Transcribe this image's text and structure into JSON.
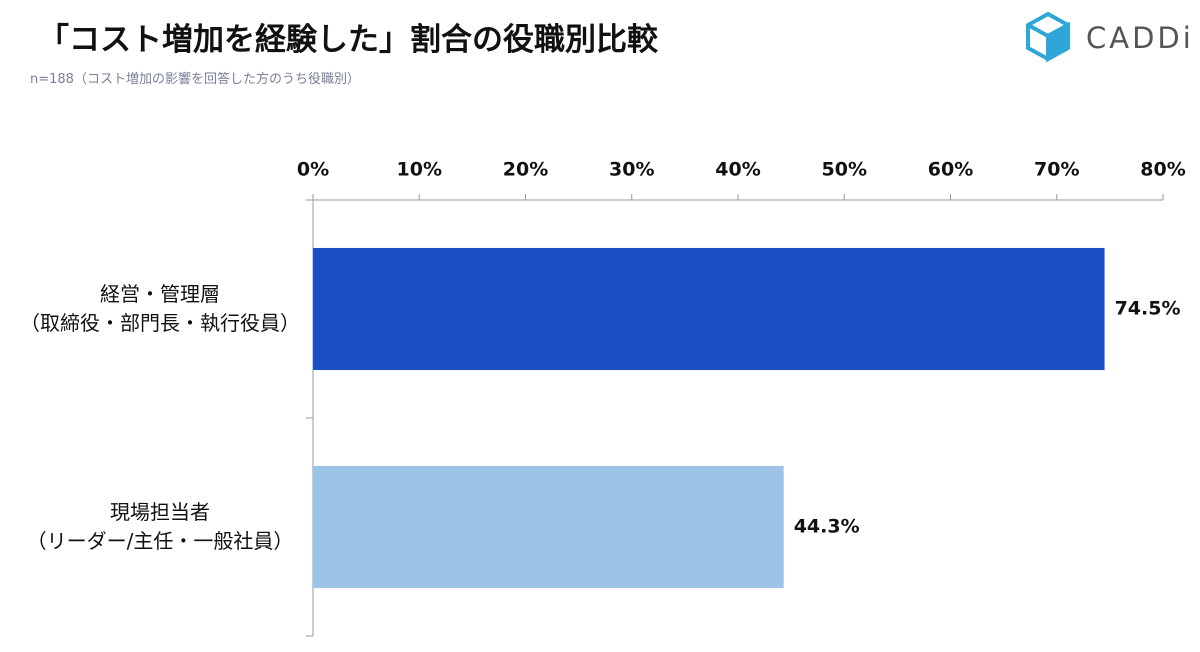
{
  "chart_data": {
    "type": "hbar",
    "title": "「コスト増加を経験した」割合の役職別比較",
    "subtitle": "n=188（コスト増加の影響を回答した方のうち役職別）",
    "logo": "CADDi",
    "categories": [
      "経営・管理層\n（取締役・部門長・執行役員）",
      "現場担当者\n（リーダー/主任・一般社員）"
    ],
    "values": [
      74.5,
      44.3
    ],
    "value_labels": [
      "74.5%",
      "44.3%"
    ],
    "colors": [
      "#1b50c4",
      "#9dc3e6"
    ],
    "xlim": [
      0,
      80
    ],
    "xticks": [
      {
        "value": 0,
        "label": "0%"
      },
      {
        "value": 10,
        "label": "10%"
      },
      {
        "value": 20,
        "label": "20%"
      },
      {
        "value": 30,
        "label": "30%"
      },
      {
        "value": 40,
        "label": "40%"
      },
      {
        "value": 50,
        "label": "50%"
      },
      {
        "value": 60,
        "label": "60%"
      },
      {
        "value": 70,
        "label": "70%"
      },
      {
        "value": 80,
        "label": "80%"
      }
    ],
    "grid": false
  }
}
